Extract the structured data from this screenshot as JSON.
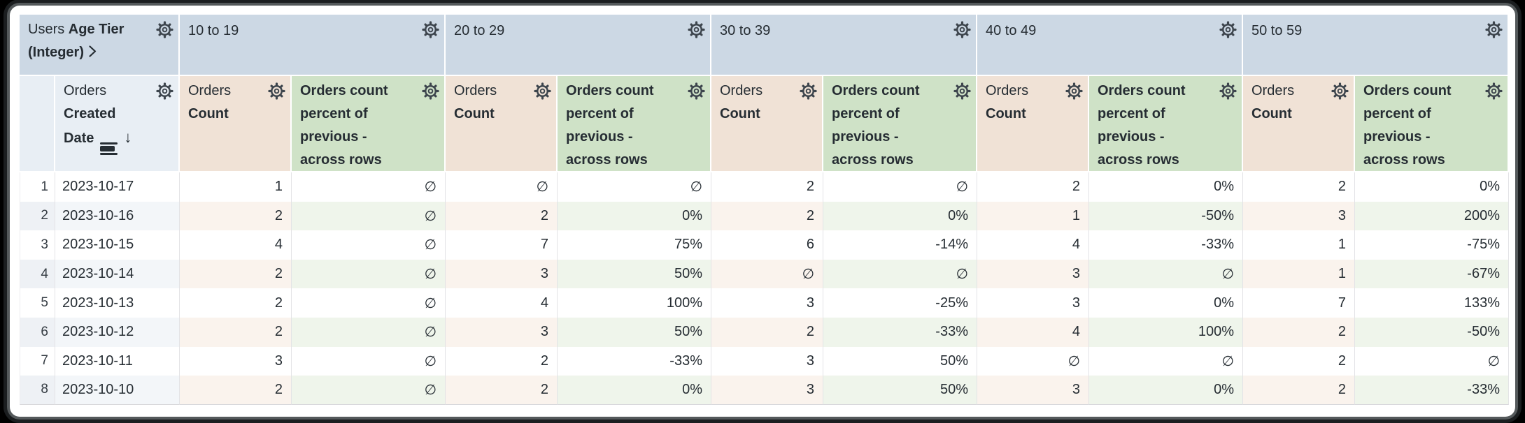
{
  "table": {
    "pivot_header": {
      "view": "Users",
      "field": "Age Tier (Integer)"
    },
    "row_dimension": {
      "view": "Orders",
      "field": "Created Date",
      "sort_arrow": "↓"
    },
    "pivot_values": [
      "10 to 19",
      "20 to 29",
      "30 to 39",
      "40 to 49",
      "50 to 59"
    ],
    "measure_count": {
      "view": "Orders",
      "field": "Count"
    },
    "measure_pct_label": "Orders count percent of previous - across rows",
    "null_symbol": "∅",
    "rows": [
      {
        "index": "1",
        "date": "2023-10-17",
        "values": [
          "1",
          "∅",
          "∅",
          "∅",
          "2",
          "∅",
          "2",
          "0%",
          "2",
          "0%"
        ]
      },
      {
        "index": "2",
        "date": "2023-10-16",
        "values": [
          "2",
          "∅",
          "2",
          "0%",
          "2",
          "0%",
          "1",
          "-50%",
          "3",
          "200%"
        ]
      },
      {
        "index": "3",
        "date": "2023-10-15",
        "values": [
          "4",
          "∅",
          "7",
          "75%",
          "6",
          "-14%",
          "4",
          "-33%",
          "1",
          "-75%"
        ]
      },
      {
        "index": "4",
        "date": "2023-10-14",
        "values": [
          "2",
          "∅",
          "3",
          "50%",
          "∅",
          "∅",
          "3",
          "∅",
          "1",
          "-67%"
        ]
      },
      {
        "index": "5",
        "date": "2023-10-13",
        "values": [
          "2",
          "∅",
          "4",
          "100%",
          "3",
          "-25%",
          "3",
          "0%",
          "7",
          "133%"
        ]
      },
      {
        "index": "6",
        "date": "2023-10-12",
        "values": [
          "2",
          "∅",
          "3",
          "50%",
          "2",
          "-33%",
          "4",
          "100%",
          "2",
          "-50%"
        ]
      },
      {
        "index": "7",
        "date": "2023-10-11",
        "values": [
          "3",
          "∅",
          "2",
          "-33%",
          "3",
          "50%",
          "∅",
          "∅",
          "2",
          "∅"
        ]
      },
      {
        "index": "8",
        "date": "2023-10-10",
        "values": [
          "2",
          "∅",
          "2",
          "0%",
          "3",
          "50%",
          "3",
          "0%",
          "2",
          "-33%"
        ]
      }
    ],
    "colors": {
      "pivot_header_bg": "#ccd8e4",
      "dimension_header_bg": "#e8eef4",
      "count_header_bg": "#f0e2d6",
      "percent_header_bg": "#cfe2c7",
      "even_row_dimension_bg": "#f3f6f9",
      "even_row_count_bg": "#faf3ed",
      "even_row_percent_bg": "#eff5eb",
      "even_row_index_bg": "#eef1f5",
      "text": "#262d33",
      "grid_line": "#e3e3e6"
    }
  }
}
